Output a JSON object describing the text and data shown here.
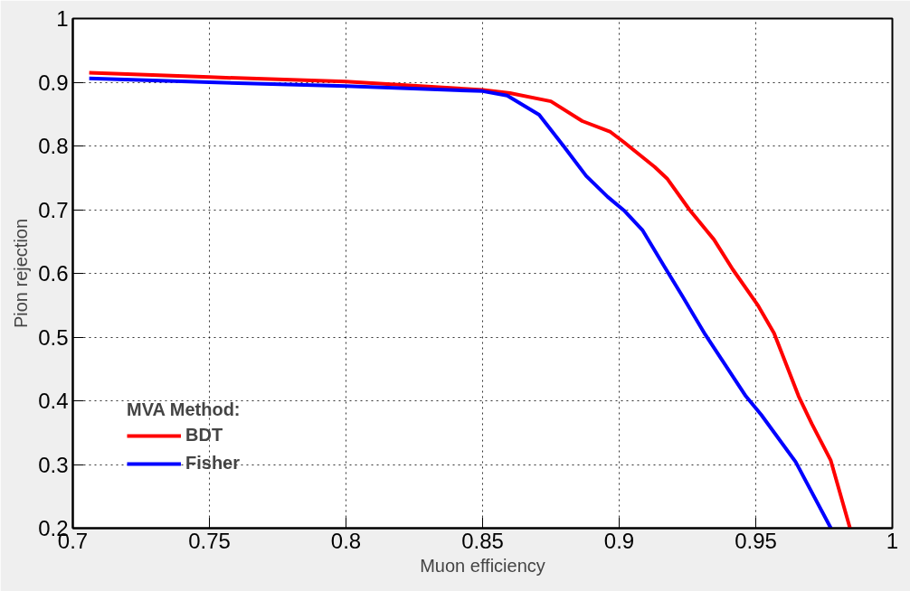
{
  "chart_data": {
    "type": "line",
    "xlabel": "Muon efficiency",
    "ylabel": "Pion rejection",
    "legend_title": "MVA Method:",
    "xlim": [
      0.7,
      1.0
    ],
    "ylim": [
      0.2,
      1.0
    ],
    "xticks": [
      0.7,
      0.75,
      0.8,
      0.85,
      0.9,
      0.95,
      {
        "value": 1.0,
        "label": "1"
      }
    ],
    "yticks": [
      0.2,
      0.3,
      0.4,
      0.5,
      0.6,
      0.7,
      0.8,
      0.9,
      {
        "value": 1.0,
        "label": "1"
      }
    ],
    "grid": true,
    "legend": "bottom left",
    "marker": "none",
    "line_style": "solid",
    "series": [
      {
        "name": "BDT",
        "color": "#ff0000",
        "x": [
          0.706,
          0.75,
          0.8,
          0.85,
          0.86,
          0.875,
          0.8865,
          0.8968,
          0.9017,
          0.913,
          0.9175,
          0.9257,
          0.9347,
          0.9416,
          0.9509,
          0.9567,
          0.9657,
          0.9705,
          0.9774,
          0.9845
        ],
        "values": [
          0.915,
          0.908,
          0.901,
          0.888,
          0.883,
          0.87,
          0.839,
          0.822,
          0.806,
          0.767,
          0.749,
          0.7,
          0.653,
          0.606,
          0.549,
          0.506,
          0.407,
          0.364,
          0.307,
          0.2
        ]
      },
      {
        "name": "Fisher",
        "color": "#0000ff",
        "x": [
          0.706,
          0.75,
          0.8,
          0.85,
          0.859,
          0.8707,
          0.8796,
          0.8879,
          0.8958,
          0.9017,
          0.9085,
          0.9165,
          0.9233,
          0.9315,
          0.9464,
          0.952,
          0.9646,
          0.9775
        ],
        "values": [
          0.906,
          0.9,
          0.894,
          0.886,
          0.879,
          0.849,
          0.8,
          0.753,
          0.72,
          0.699,
          0.668,
          0.611,
          0.563,
          0.504,
          0.407,
          0.378,
          0.304,
          0.2
        ]
      }
    ]
  }
}
